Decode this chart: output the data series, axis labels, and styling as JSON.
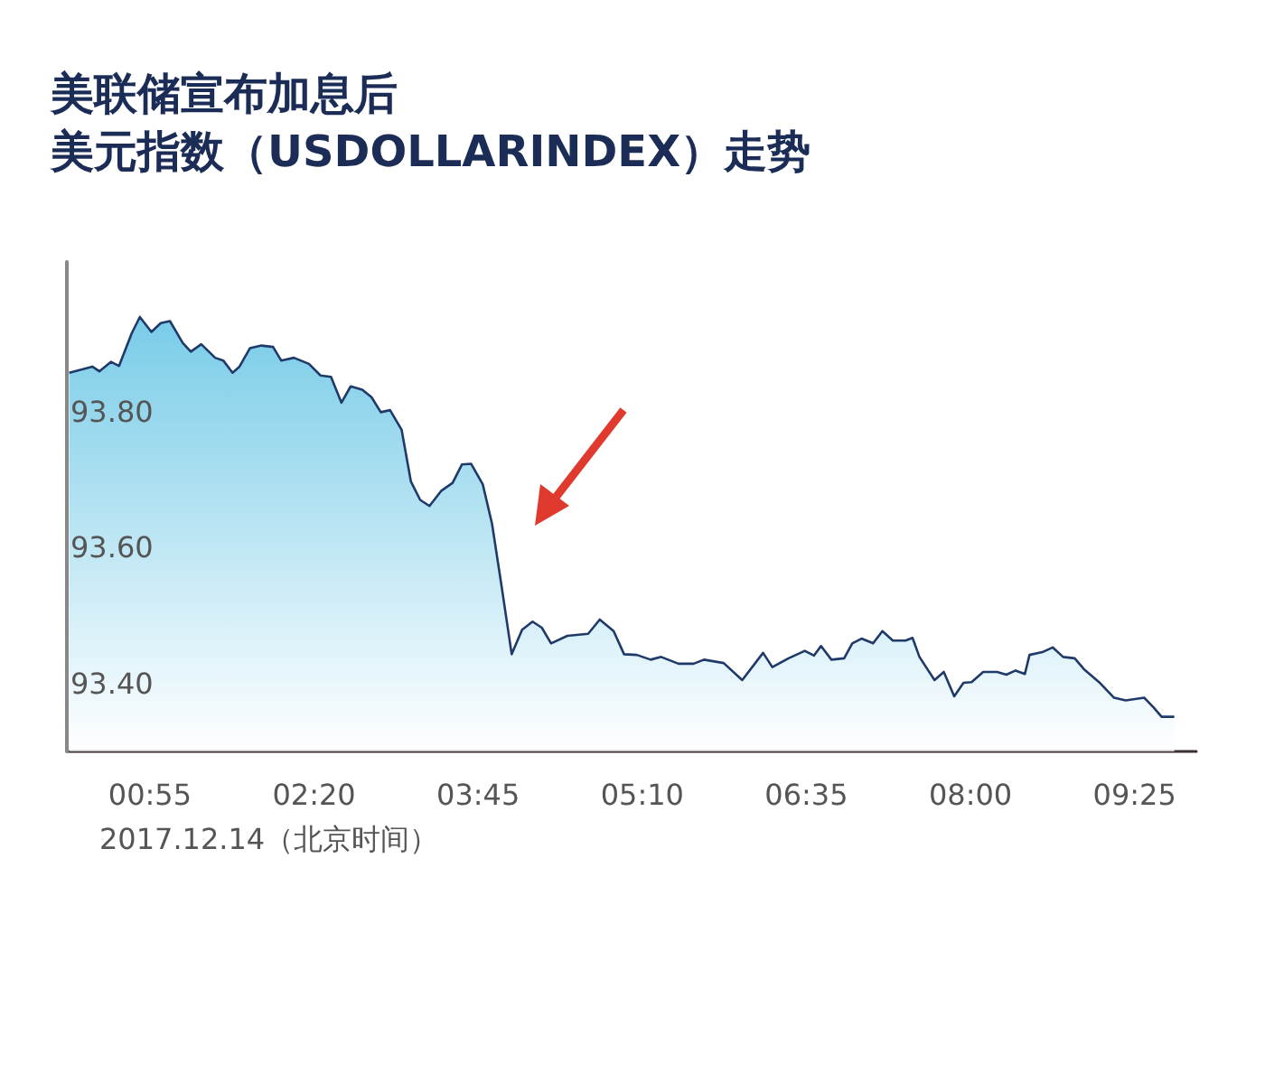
{
  "chart_data": {
    "type": "area",
    "title": "美联储宣布加息后",
    "subtitle": "美元指数（USDOLLARINDEX）走势",
    "xlabel": "2017.12.14（北京时间）",
    "x": [
      0.22,
      0.42,
      0.48,
      0.58,
      0.65,
      0.76,
      0.83,
      0.93,
      1.01,
      1.09,
      1.2,
      1.27,
      1.36,
      1.48,
      1.55,
      1.63,
      1.69,
      1.78,
      1.88,
      1.98,
      2.05,
      2.16,
      2.29,
      2.39,
      2.48,
      2.57,
      2.65,
      2.75,
      2.83,
      2.91,
      2.99,
      3.09,
      3.17,
      3.25,
      3.33,
      3.43,
      3.53,
      3.61,
      3.69,
      3.79,
      3.87,
      3.95,
      4.04,
      4.13,
      4.22,
      4.3,
      4.38,
      4.52,
      4.7,
      4.8,
      4.92,
      5.01,
      5.12,
      5.24,
      5.33,
      5.48,
      5.61,
      5.7,
      5.87,
      6.03,
      6.21,
      6.29,
      6.43,
      6.57,
      6.65,
      6.71,
      6.8,
      6.91,
      6.98,
      7.06,
      7.16,
      7.24,
      7.33,
      7.44,
      7.5,
      7.56,
      7.69,
      7.77,
      7.86,
      7.94,
      8.01,
      8.11,
      8.23,
      8.31,
      8.39,
      8.47,
      8.51,
      8.62,
      8.71,
      8.8,
      8.9,
      8.98,
      9.11,
      9.24,
      9.34,
      9.5,
      9.58,
      9.65,
      9.76
    ],
    "series": [
      {
        "color": "#1f3a68",
        "values": [
          93.857,
          93.866,
          93.859,
          93.873,
          93.867,
          93.915,
          93.939,
          93.917,
          93.93,
          93.933,
          93.901,
          93.888,
          93.899,
          93.879,
          93.875,
          93.857,
          93.866,
          93.893,
          93.897,
          93.895,
          93.875,
          93.879,
          93.87,
          93.853,
          93.851,
          93.813,
          93.837,
          93.832,
          93.821,
          93.799,
          93.802,
          93.773,
          93.697,
          93.67,
          93.661,
          93.683,
          93.695,
          93.722,
          93.723,
          93.693,
          93.635,
          93.546,
          93.443,
          93.479,
          93.491,
          93.482,
          93.459,
          93.47,
          93.473,
          93.494,
          93.477,
          93.443,
          93.442,
          93.435,
          93.439,
          93.429,
          93.429,
          93.435,
          93.43,
          93.405,
          93.445,
          93.424,
          93.437,
          93.448,
          93.441,
          93.455,
          93.435,
          93.437,
          93.459,
          93.466,
          93.459,
          93.477,
          93.463,
          93.463,
          93.467,
          93.439,
          93.405,
          93.417,
          93.381,
          93.401,
          93.402,
          93.417,
          93.417,
          93.413,
          93.419,
          93.414,
          93.442,
          93.446,
          93.453,
          93.439,
          93.437,
          93.421,
          93.402,
          93.379,
          93.375,
          93.379,
          93.365,
          93.351,
          93.351
        ]
      }
    ],
    "xlim": [
      0.2,
      9.95
    ],
    "xticks": [
      {
        "value": 0.9167,
        "label": "00:55"
      },
      {
        "value": 2.3333,
        "label": "02:20"
      },
      {
        "value": 3.75,
        "label": "03:45"
      },
      {
        "value": 5.1667,
        "label": "05:10"
      },
      {
        "value": 6.5833,
        "label": "06:35"
      },
      {
        "value": 8,
        "label": "08:00"
      },
      {
        "value": 9.4167,
        "label": "09:25"
      }
    ],
    "ylim": [
      93.3,
      94.02
    ],
    "yticks": [
      {
        "value": 93.4,
        "label": "93.40"
      },
      {
        "value": 93.6,
        "label": "93.60"
      },
      {
        "value": 93.8,
        "label": "93.80"
      }
    ],
    "grid": false,
    "marker": "none",
    "line_style": "solid"
  }
}
